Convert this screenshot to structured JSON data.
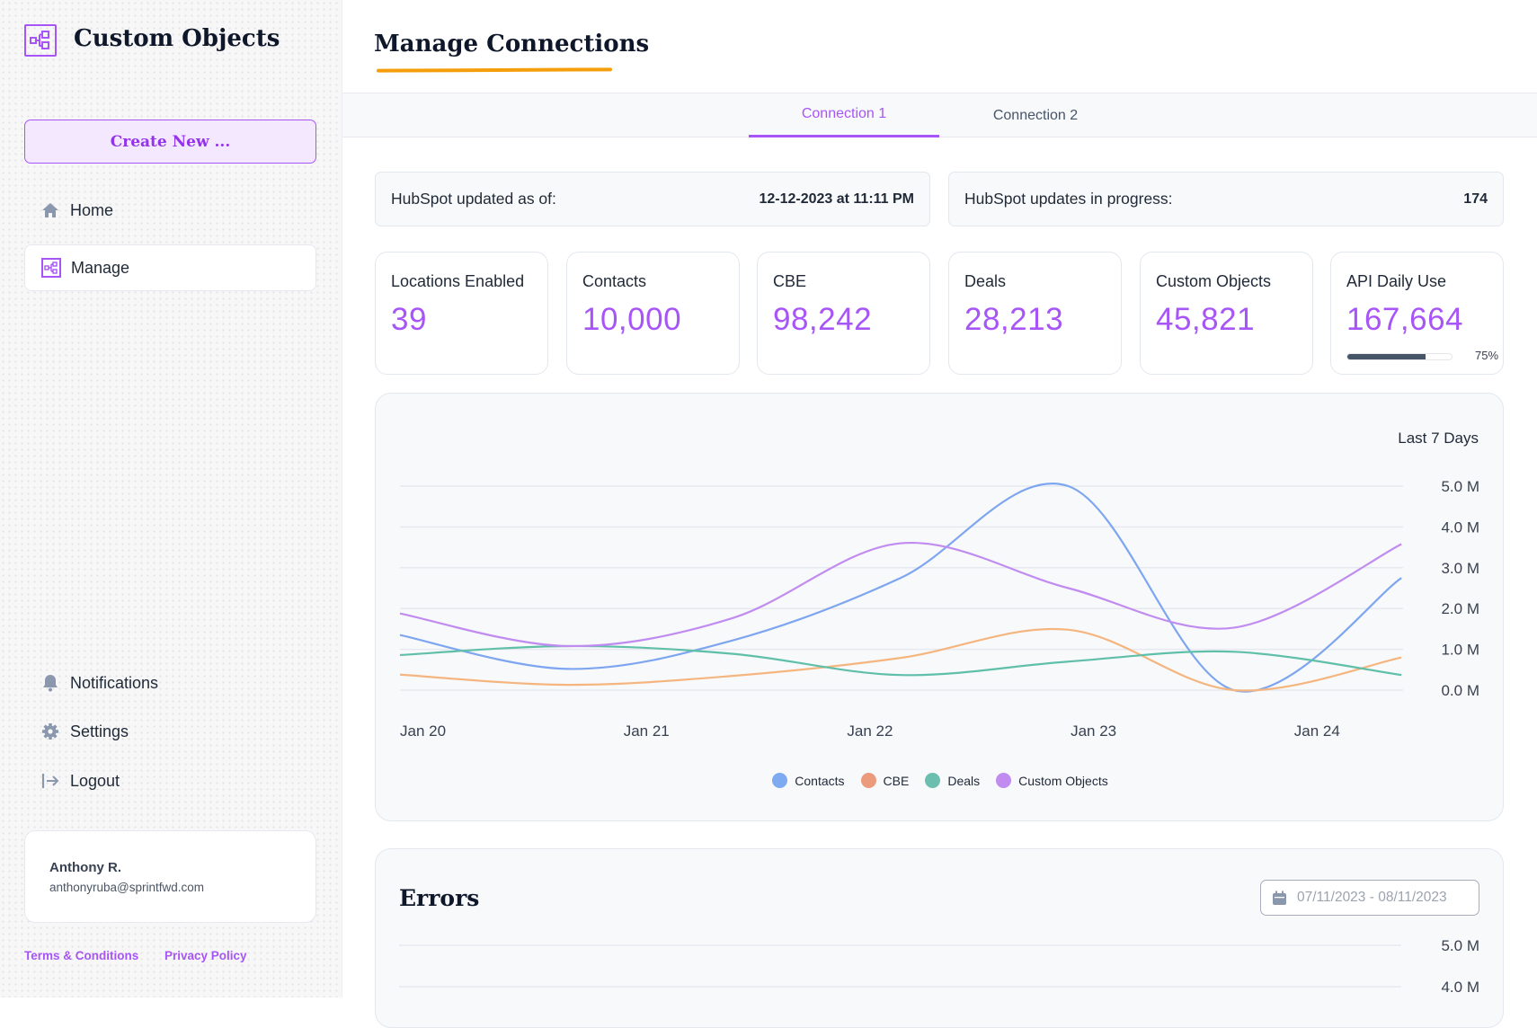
{
  "sidebar": {
    "app_title": "Custom Objects",
    "create_button": "Create New ...",
    "nav": [
      {
        "label": "Home",
        "icon": "home-icon"
      },
      {
        "label": "Manage",
        "icon": "manage-icon",
        "active": true
      },
      {
        "label": "Notifications",
        "icon": "bell-icon"
      },
      {
        "label": "Settings",
        "icon": "gear-icon"
      },
      {
        "label": "Logout",
        "icon": "logout-icon"
      }
    ],
    "user": {
      "name": "Anthony R.",
      "email": "anthonyruba@sprintfwd.com"
    },
    "links": {
      "terms": "Terms & Conditions",
      "privacy": "Privacy Policy"
    }
  },
  "header": {
    "title": "Manage Connections"
  },
  "tabs": [
    {
      "label": "Connection 1",
      "active": true
    },
    {
      "label": "Connection 2"
    }
  ],
  "info": {
    "updated_label": "HubSpot updated as of:",
    "updated_value": "12-12-2023 at 11:11 PM",
    "progress_label": "HubSpot updates in progress:",
    "progress_value": "174"
  },
  "stats": [
    {
      "label": "Locations Enabled",
      "value": "39"
    },
    {
      "label": "Contacts",
      "value": "10,000"
    },
    {
      "label": "CBE",
      "value": "98,242"
    },
    {
      "label": "Deals",
      "value": "28,213"
    },
    {
      "label": "Custom Objects",
      "value": "45,821"
    },
    {
      "label": "API Daily Use",
      "value": "167,664",
      "usage_percent": 75,
      "usage_label": "75%"
    }
  ],
  "colors": {
    "accent": "#a855f7",
    "highlight": "#f59e0b"
  },
  "chart_data": {
    "type": "line",
    "title": "Last 7 Days",
    "x_ticks": [
      "Jan 20",
      "Jan 21",
      "Jan 22",
      "Jan 23",
      "Jan 24"
    ],
    "x_points_days_from_jan20": [
      0,
      0.75,
      1.49,
      2.24,
      2.99,
      3.73,
      4.48
    ],
    "y_ticks": [
      "0.0 M",
      "1.0 M",
      "2.0 M",
      "3.0 M",
      "4.0 M",
      "5.0 M"
    ],
    "ylim": [
      0,
      5
    ],
    "y_unit": "M",
    "grid": true,
    "legend_position": "bottom",
    "series": [
      {
        "name": "Contacts",
        "color": "#7ea6f0",
        "values": [
          1.35,
          0.52,
          1.22,
          2.75,
          5.0,
          0.0,
          2.75
        ]
      },
      {
        "name": "CBE",
        "color": "#f5b57f",
        "values": [
          0.38,
          0.13,
          0.35,
          0.79,
          1.48,
          0.0,
          0.8
        ]
      },
      {
        "name": "Deals",
        "color": "#5fbfa9",
        "values": [
          0.86,
          1.08,
          0.89,
          0.37,
          0.7,
          0.94,
          0.37
        ]
      },
      {
        "name": "Custom Objects",
        "color": "#c08cf0",
        "values": [
          1.88,
          1.08,
          1.77,
          3.6,
          2.5,
          1.53,
          3.58
        ]
      }
    ],
    "legend_colors": [
      "#7eaaf2",
      "#eb9a7c",
      "#6cbfae",
      "#c08cf0"
    ]
  },
  "errors": {
    "title": "Errors",
    "date_range": "07/11/2023 - 08/11/2023",
    "y_ticks": [
      "5.0 M",
      "4.0 M"
    ]
  }
}
